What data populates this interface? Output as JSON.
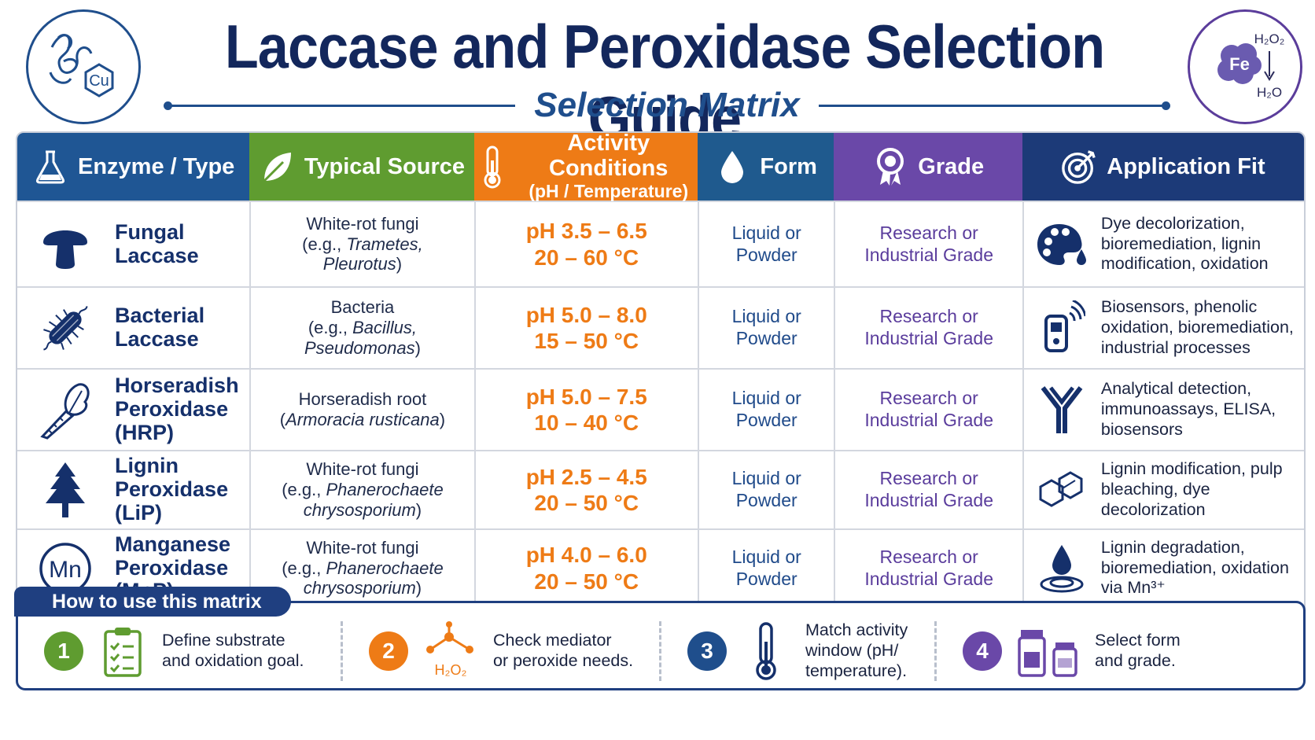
{
  "header": {
    "title": "Laccase and Peroxidase Selection Guide",
    "subtitle": "Selection Matrix",
    "left_logo": {
      "icon": "protein-copper-icon",
      "label": "Cu"
    },
    "right_logo": {
      "icon": "iron-peroxide-icon",
      "label": "Fe",
      "top": "H₂O₂",
      "bottom": "H₂O"
    }
  },
  "columns": [
    {
      "label": "Enzyme / Type",
      "icon": "flask-icon",
      "color": "#1f5694"
    },
    {
      "label": "Typical Source",
      "icon": "leaf-icon",
      "color": "#5f9c30"
    },
    {
      "label": "Activity Conditions",
      "sublabel": "(pH / Temperature)",
      "icon": "thermometer-icon",
      "color": "#ee7b16"
    },
    {
      "label": "Form",
      "icon": "droplet-icon",
      "color": "#1f5a8e"
    },
    {
      "label": "Grade",
      "icon": "award-icon",
      "color": "#6a48a8"
    },
    {
      "label": "Application Fit",
      "icon": "target-icon",
      "color": "#1c3a78"
    }
  ],
  "rows": [
    {
      "enzyme": "Fungal Laccase",
      "icon": "mushroom-icon",
      "source_line1": "White-rot fungi",
      "source_line2_pre": "(e.g., ",
      "source_line2_it": "Trametes,",
      "source_line3_it": "Pleurotus",
      "source_line3_post": ")",
      "ph": "pH 3.5 – 6.5",
      "temp": "20 – 60 °C",
      "form1": "Liquid or",
      "form2": "Powder",
      "grade1": "Research or",
      "grade2": "Industrial Grade",
      "app_icon": "palette-icon",
      "app": "Dye decolorization, bioremediation, lignin modification, oxidation"
    },
    {
      "enzyme": "Bacterial Laccase",
      "icon": "bacterium-icon",
      "source_line1": "Bacteria",
      "source_line2_pre": "(e.g., ",
      "source_line2_it": "Bacillus,",
      "source_line3_it": "Pseudomonas",
      "source_line3_post": ")",
      "ph": "pH 5.0 – 8.0",
      "temp": "15 – 50 °C",
      "form1": "Liquid or",
      "form2": "Powder",
      "grade1": "Research or",
      "grade2": "Industrial Grade",
      "app_icon": "biosensor-icon",
      "app": "Biosensors, phenolic oxidation, bioremediation, industrial processes"
    },
    {
      "enzyme": "Horseradish Peroxidase (HRP)",
      "icon": "horseradish-root-icon",
      "source_line1": "Horseradish root",
      "source_line2_pre": "(",
      "source_line2_it": "Armoracia rusticana",
      "source_line3_it": "",
      "source_line3_post": ")",
      "ph": "pH 5.0 – 7.5",
      "temp": "10 – 40 °C",
      "form1": "Liquid or",
      "form2": "Powder",
      "grade1": "Research or",
      "grade2": "Industrial Grade",
      "app_icon": "antibody-icon",
      "app": "Analytical detection, immunoassays, ELISA, biosensors"
    },
    {
      "enzyme": "Lignin Peroxidase (LiP)",
      "icon": "tree-icon",
      "source_line1": "White-rot fungi",
      "source_line2_pre": "(e.g., ",
      "source_line2_it": "Phanerochaete",
      "source_line3_it": "chrysosporium",
      "source_line3_post": ")",
      "ph": "pH 2.5 – 4.5",
      "temp": "20 – 50 °C",
      "form1": "Liquid or",
      "form2": "Powder",
      "grade1": "Research or",
      "grade2": "Industrial Grade",
      "app_icon": "lignin-ring-icon",
      "app": "Lignin modification, pulp bleaching, dye decolorization"
    },
    {
      "enzyme": "Manganese Peroxidase (MnP)",
      "icon": "manganese-icon",
      "source_line1": "White-rot fungi",
      "source_line2_pre": "(e.g., ",
      "source_line2_it": "Phanerochaete",
      "source_line3_it": "chrysosporium",
      "source_line3_post": ")",
      "ph": "pH 4.0 – 6.0",
      "temp": "20 – 50 °C",
      "form1": "Liquid or",
      "form2": "Powder",
      "grade1": "Research or",
      "grade2": "Industrial Grade",
      "app_icon": "water-drop-ripple-icon",
      "app": "Lignin degradation, bioremediation, oxidation via Mn³⁺"
    }
  ],
  "howto": {
    "title": "How to use this matrix",
    "steps": [
      {
        "num": "1",
        "icon": "checklist-icon",
        "text1": "Define substrate",
        "text2": "and oxidation goal."
      },
      {
        "num": "2",
        "icon": "molecule-icon",
        "icon_label": "H₂O₂",
        "text1": "Check mediator",
        "text2": "or peroxide needs."
      },
      {
        "num": "3",
        "icon": "thermometer-icon",
        "text1": "Match activity",
        "text2": "window (pH/",
        "text3": "temperature)."
      },
      {
        "num": "4",
        "icon": "vials-icon",
        "text1": "Select form",
        "text2": "and grade."
      }
    ]
  }
}
